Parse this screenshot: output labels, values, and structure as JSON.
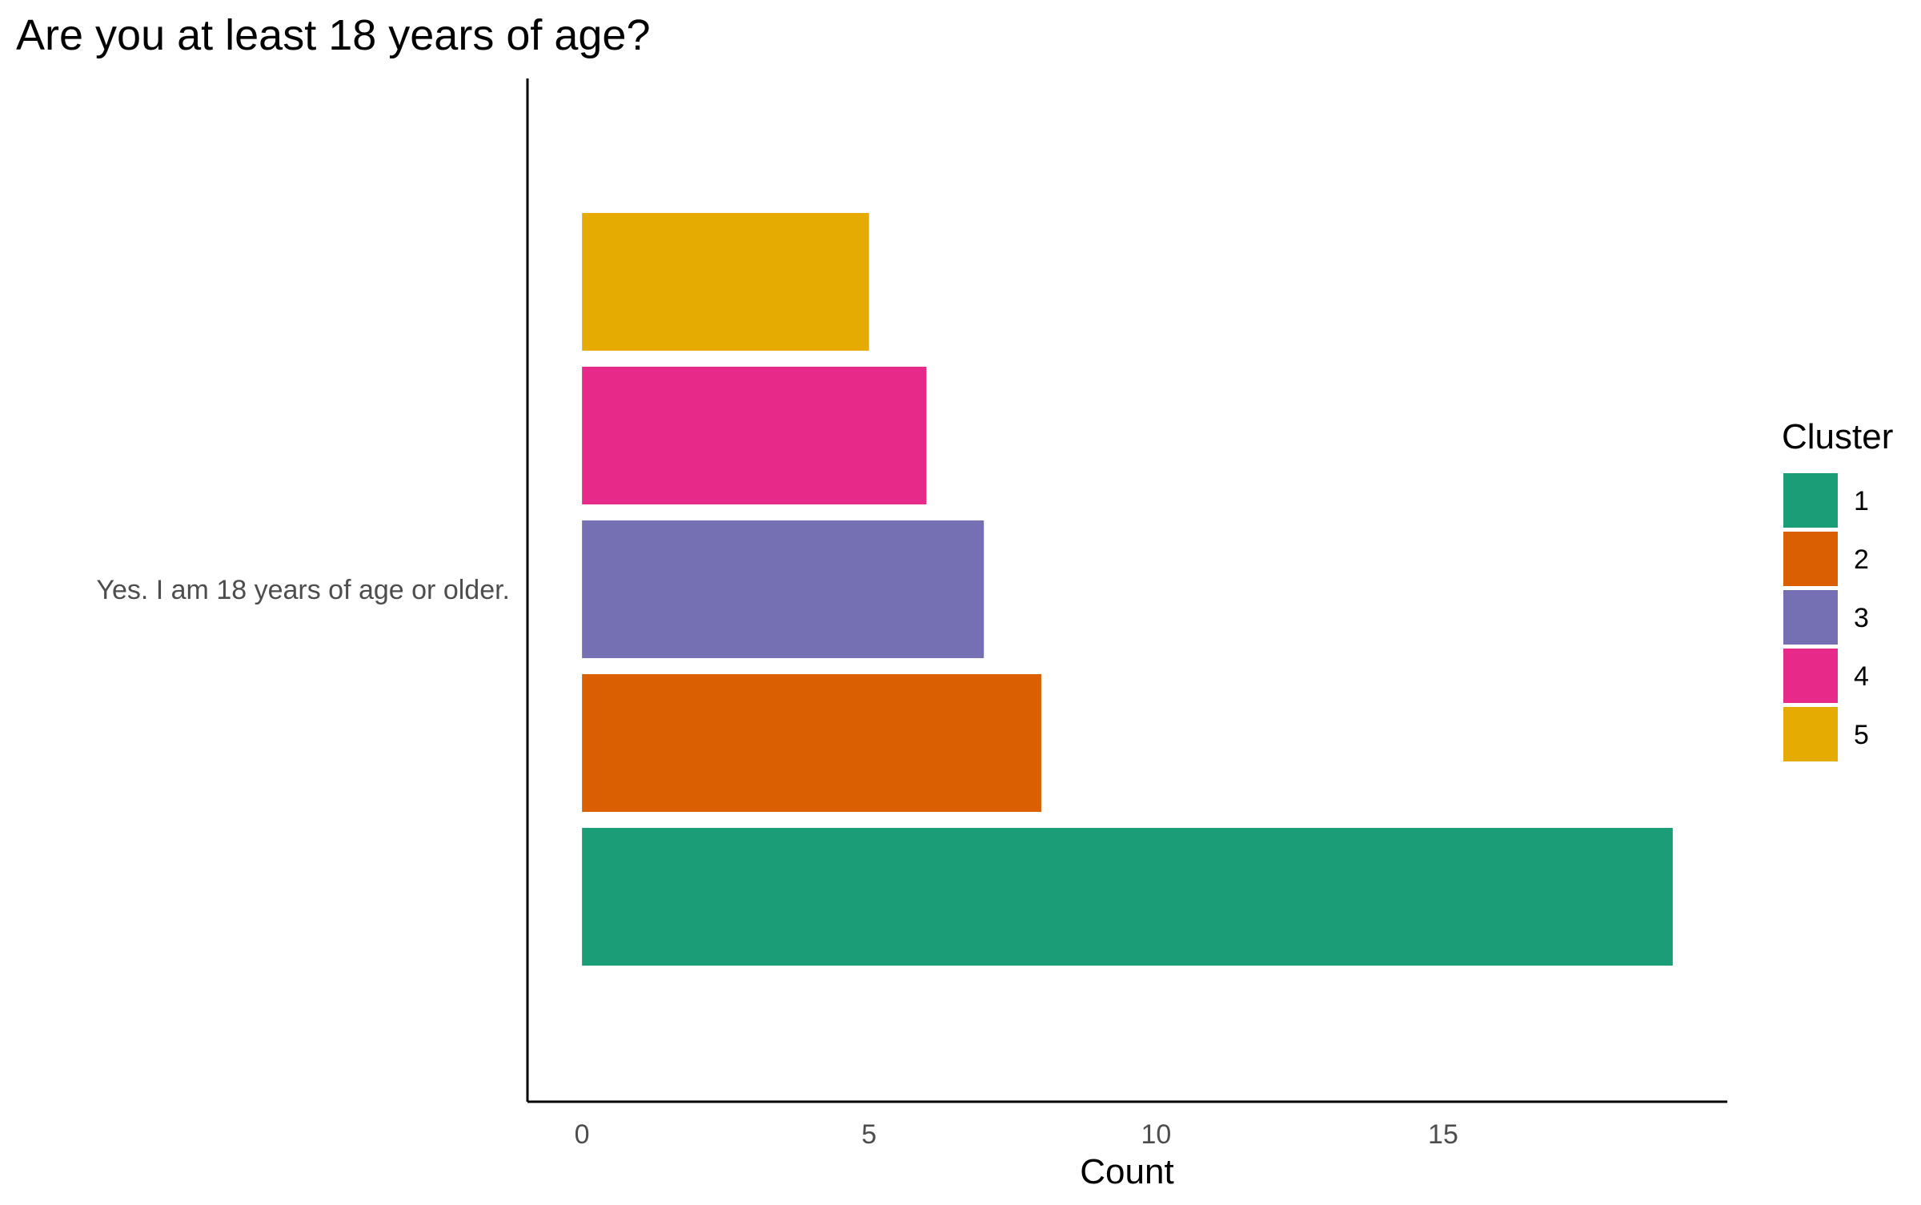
{
  "chart_data": {
    "type": "bar",
    "orientation": "horizontal",
    "title": "Are you at least 18 years of age?",
    "xlabel": "Count",
    "ylabel": "",
    "categories": [
      "Yes. I am 18 years of age or older."
    ],
    "series": [
      {
        "name": "1",
        "values": [
          19
        ],
        "color": "#1B9E77"
      },
      {
        "name": "2",
        "values": [
          8
        ],
        "color": "#D95F02"
      },
      {
        "name": "3",
        "values": [
          7
        ],
        "color": "#7570B3"
      },
      {
        "name": "4",
        "values": [
          6
        ],
        "color": "#E7298A"
      },
      {
        "name": "5",
        "values": [
          5
        ],
        "color": "#E6AB02"
      }
    ],
    "xlim": [
      -0.95,
      19.95
    ],
    "xticks": [
      "0",
      "5",
      "10",
      "15"
    ],
    "grid": false,
    "legend": {
      "title": "Cluster",
      "placement": "right",
      "entries": [
        "1",
        "2",
        "3",
        "4",
        "5"
      ]
    }
  }
}
